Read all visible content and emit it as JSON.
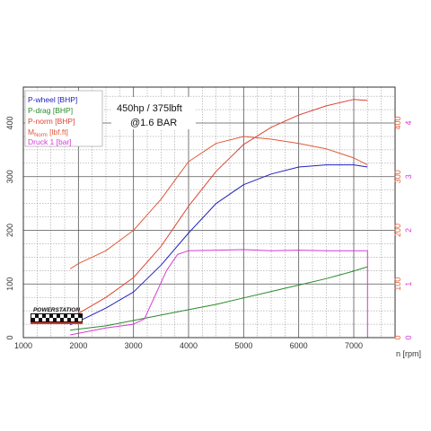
{
  "chart_data": {
    "type": "line",
    "xlabel": "n [rpm]",
    "xlim": [
      1000,
      7750
    ],
    "ylim_left": [
      0,
      467
    ],
    "ylim_right": [
      0,
      4.67
    ],
    "x_ticks": [
      "1000",
      "2000",
      "3000",
      "4000",
      "5000",
      "6000",
      "7000"
    ],
    "x_tick_values": [
      1000,
      2000,
      3000,
      4000,
      5000,
      6000,
      7000
    ],
    "y_left_ticks": [
      "0",
      "100",
      "200",
      "300",
      "400"
    ],
    "y_left_tick_values": [
      0,
      100,
      200,
      300,
      400
    ],
    "y_right_ticks": [
      "0",
      "100",
      "200",
      "300",
      "400"
    ],
    "y_right_tick_values": [
      0,
      100,
      200,
      300,
      400
    ],
    "y_right2_ticks": [
      "0",
      "1",
      "2",
      "3",
      "4"
    ],
    "y_right2_tick_values": [
      0,
      1,
      2,
      3,
      4
    ],
    "y_right_color": "#e8603c",
    "y_right2_color": "#d63ad6",
    "annotations": [
      "450hp / 375lbft",
      "@1.6 BAR"
    ],
    "logo_text": "POWERSTATION",
    "grid": true,
    "legend_position": "top-left",
    "series": [
      {
        "name": "P-wheel [BHP]",
        "color": "#2222bb",
        "axis": "left",
        "x": [
          1850,
          2000,
          2500,
          3000,
          3500,
          4000,
          4500,
          5000,
          5500,
          6000,
          6500,
          7000,
          7250
        ],
        "values": [
          24,
          30,
          55,
          85,
          135,
          195,
          250,
          285,
          305,
          318,
          322,
          322,
          318
        ]
      },
      {
        "name": "P-drag [BHP]",
        "color": "#2a8a2a",
        "axis": "left",
        "x": [
          1850,
          2500,
          3000,
          3500,
          4000,
          4500,
          5000,
          5500,
          6000,
          6500,
          7000,
          7250
        ],
        "values": [
          14,
          22,
          32,
          42,
          52,
          62,
          74,
          86,
          98,
          110,
          124,
          132
        ]
      },
      {
        "name": "P-norm [BHP]",
        "color": "#dd4433",
        "axis": "left",
        "x": [
          1850,
          2000,
          2500,
          3000,
          3500,
          4000,
          4500,
          5000,
          5500,
          6000,
          6500,
          7000,
          7250
        ],
        "values": [
          38,
          45,
          75,
          112,
          170,
          245,
          310,
          360,
          392,
          415,
          432,
          444,
          442
        ]
      },
      {
        "name": "M_Norm [lbf.ft]",
        "label_main": "M",
        "label_sub": "Norm",
        "label_unit": " [lbf.ft]",
        "color": "#e05a3a",
        "axis": "right",
        "x": [
          1850,
          2000,
          2500,
          3000,
          3500,
          3800,
          4000,
          4500,
          5000,
          5500,
          6000,
          6500,
          7000,
          7250
        ],
        "values": [
          128,
          138,
          162,
          200,
          258,
          300,
          328,
          362,
          375,
          370,
          362,
          352,
          335,
          322
        ]
      },
      {
        "name": "Druck 1 [bar]",
        "color": "#d63ad6",
        "axis": "right2",
        "x": [
          1850,
          2500,
          3000,
          3200,
          3400,
          3600,
          3800,
          4000,
          4500,
          5000,
          5500,
          6000,
          6500,
          7000,
          7250,
          7250
        ],
        "values": [
          0.05,
          0.18,
          0.25,
          0.35,
          0.8,
          1.25,
          1.55,
          1.62,
          1.63,
          1.64,
          1.62,
          1.63,
          1.62,
          1.62,
          1.62,
          0
        ]
      }
    ]
  }
}
